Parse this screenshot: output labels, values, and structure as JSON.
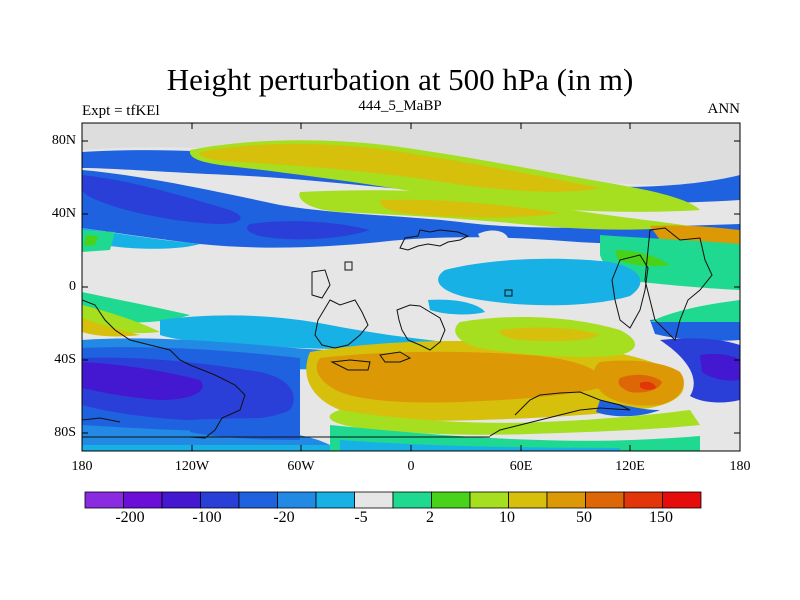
{
  "title": "Height perturbation at 500 hPa (in m)",
  "subtitle_left": "Expt = tfKEl",
  "subtitle_center": "444_5_MaBP",
  "subtitle_right": "ANN",
  "lat_labels": [
    "80N",
    "40N",
    "0",
    "40S",
    "80S"
  ],
  "lon_labels": [
    "180",
    "120W",
    "60W",
    "0",
    "60E",
    "120E",
    "180"
  ],
  "colorbar": {
    "colors": [
      "#8a2be2",
      "#6a0ed8",
      "#4318d0",
      "#2a3fd8",
      "#1f62e0",
      "#2289e4",
      "#18b1e6",
      "#e6e6e6",
      "#1ed98f",
      "#49d21a",
      "#a6de20",
      "#d6c00c",
      "#dd9806",
      "#dd6707",
      "#e2350a",
      "#e60c0c"
    ],
    "labels": [
      "-200",
      "-100",
      "-20",
      "-5",
      "2",
      "10",
      "50",
      "150"
    ]
  }
}
